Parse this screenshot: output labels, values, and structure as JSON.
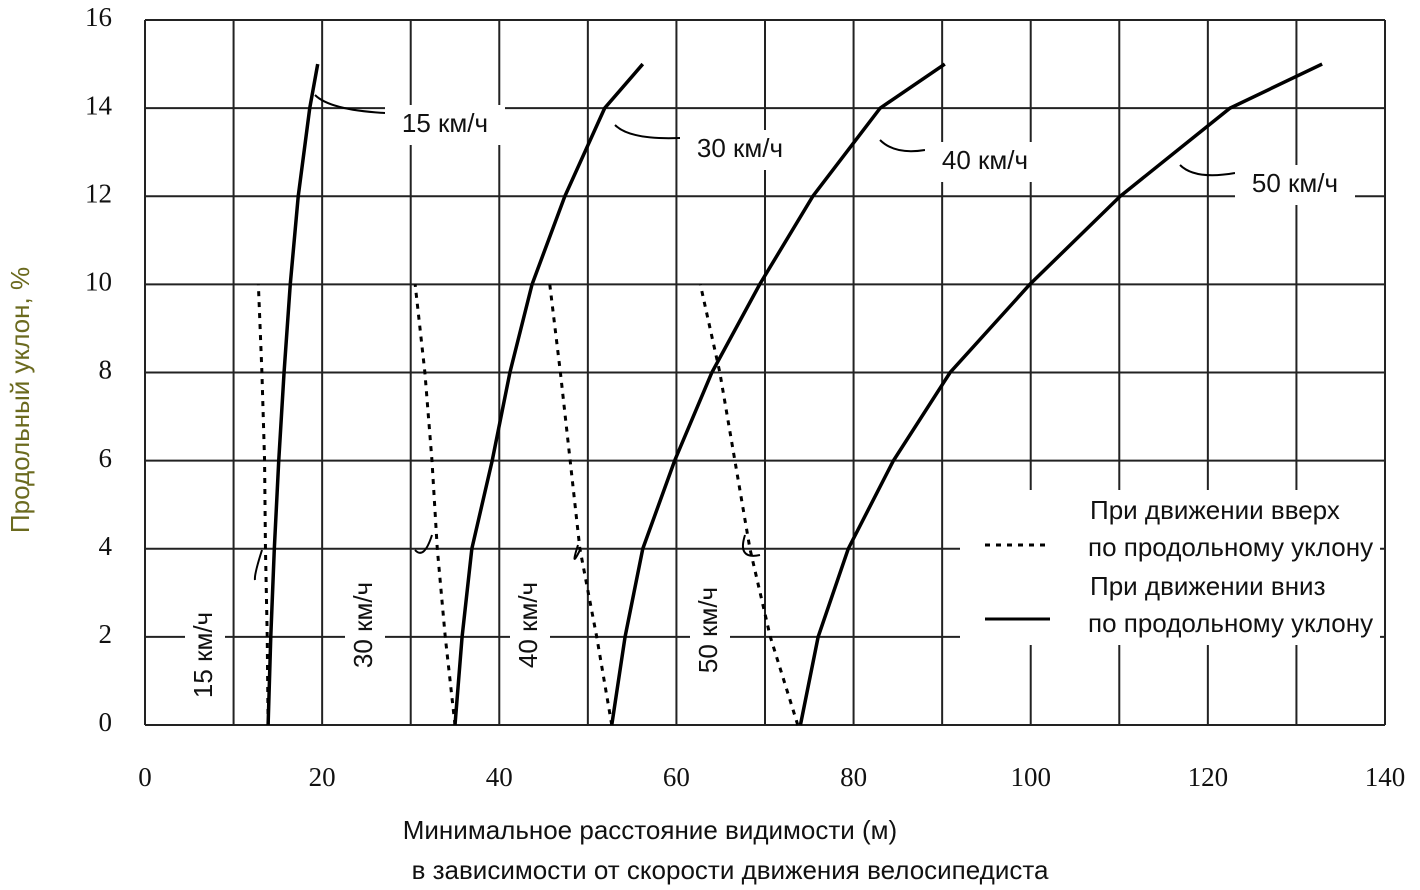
{
  "chart_data": {
    "type": "line",
    "xlabel": [
      "Минимальное расстояние видимости (м)",
      "в зависимости от скорости движения велосипедиста"
    ],
    "ylabel": "Продольный уклон, %",
    "xlim": [
      0,
      140
    ],
    "ylim": [
      0,
      16
    ],
    "xticks": [
      0,
      20,
      40,
      60,
      80,
      100,
      120,
      140
    ],
    "x_minor_grid": [
      10,
      30,
      50,
      70,
      90,
      110,
      130
    ],
    "yticks": [
      0,
      2,
      4,
      6,
      8,
      10,
      12,
      14,
      16
    ],
    "grid": true,
    "color": "#000000",
    "series": [
      {
        "name": "15 км/ч",
        "style": "solid",
        "x": [
          13.9,
          14.2,
          14.6,
          15.1,
          15.7,
          16.4,
          17.3,
          18.6,
          19.5
        ],
        "values": [
          0,
          2,
          4,
          6,
          8,
          10,
          12,
          14,
          15
        ]
      },
      {
        "name": "30 км/ч",
        "style": "solid",
        "x": [
          35.0,
          35.8,
          36.9,
          39.2,
          41.2,
          43.7,
          47.4,
          51.9,
          56.2
        ],
        "values": [
          0,
          2,
          4,
          6,
          8,
          10,
          12,
          14,
          15
        ]
      },
      {
        "name": "40 км/ч",
        "style": "solid",
        "x": [
          52.7,
          54.2,
          56.2,
          59.8,
          64.0,
          69.4,
          75.4,
          83.0,
          90.3
        ],
        "values": [
          0,
          2,
          4,
          6,
          8,
          10,
          12,
          14,
          15
        ]
      },
      {
        "name": "50 км/ч",
        "style": "solid",
        "x": [
          74.0,
          76.0,
          79.4,
          84.5,
          90.9,
          99.9,
          110.1,
          122.5,
          132.9
        ],
        "values": [
          0,
          2,
          4,
          6,
          8,
          10,
          12,
          14,
          15
        ]
      },
      {
        "name": "15 км/ч",
        "style": "dotted",
        "x": [
          13.9,
          13.8,
          13.6,
          13.5,
          13.2,
          12.8
        ],
        "values": [
          0,
          2,
          4,
          6,
          8,
          10
        ]
      },
      {
        "name": "30 км/ч",
        "style": "dotted",
        "x": [
          35.0,
          33.9,
          33.0,
          32.4,
          31.6,
          30.5
        ],
        "values": [
          0,
          2,
          4,
          6,
          8,
          10
        ]
      },
      {
        "name": "40 км/ч",
        "style": "dotted",
        "x": [
          52.7,
          51.0,
          49.1,
          48.0,
          46.9,
          45.7
        ],
        "values": [
          0,
          2,
          4,
          6,
          8,
          10
        ]
      },
      {
        "name": "50 км/ч",
        "style": "dotted",
        "x": [
          73.7,
          70.6,
          68.3,
          66.6,
          64.9,
          62.7
        ],
        "values": [
          0,
          2,
          4,
          6,
          8,
          10
        ]
      }
    ],
    "legend": [
      {
        "style": "dotted",
        "label": [
          "При движении вверх",
          "по продольному уклону"
        ]
      },
      {
        "style": "solid",
        "label": [
          "При движении вниз",
          "по продольному уклону"
        ]
      }
    ]
  }
}
